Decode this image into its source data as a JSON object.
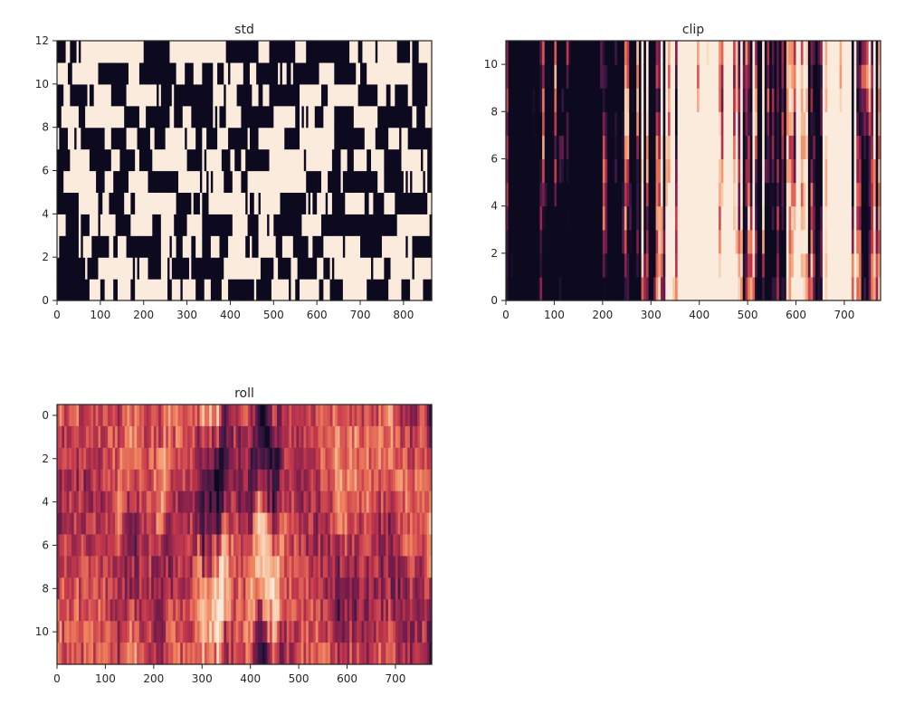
{
  "chart_data": [
    {
      "type": "heatmap",
      "title": "std",
      "xlabel": "",
      "ylabel": "",
      "xlim": [
        0,
        865
      ],
      "ylim": [
        0,
        12
      ],
      "y_orientation": "up",
      "xticks": [
        0,
        100,
        200,
        300,
        400,
        500,
        600,
        700,
        800
      ],
      "yticks": [
        0,
        2,
        4,
        6,
        8,
        10,
        12
      ],
      "n_cols": 865,
      "n_rows": 12,
      "value_range": [
        0,
        1
      ],
      "pattern": "binary",
      "seed": 11,
      "colormap": [
        "#0d0a1f",
        "#3b1845",
        "#7a1d4b",
        "#c73a4d",
        "#f0845d",
        "#f7c6a3",
        "#faebdd"
      ]
    },
    {
      "type": "heatmap",
      "title": "clip",
      "xlabel": "",
      "ylabel": "",
      "xlim": [
        0,
        775
      ],
      "ylim": [
        0,
        11
      ],
      "y_orientation": "up",
      "xticks": [
        0,
        100,
        200,
        300,
        400,
        500,
        600,
        700
      ],
      "yticks": [
        0,
        2,
        4,
        6,
        8,
        10
      ],
      "n_cols": 775,
      "n_rows": 11,
      "value_range": [
        0,
        1
      ],
      "pattern": "clipped",
      "seed": 23,
      "colormap": [
        "#0d0a1f",
        "#3b1845",
        "#7a1d4b",
        "#c73a4d",
        "#f0845d",
        "#f7c6a3",
        "#faebdd"
      ]
    },
    {
      "type": "heatmap",
      "title": "roll",
      "xlabel": "",
      "ylabel": "",
      "xlim": [
        0,
        775
      ],
      "ylim": [
        11.5,
        -0.5
      ],
      "y_orientation": "down",
      "xticks": [
        0,
        100,
        200,
        300,
        400,
        500,
        600,
        700
      ],
      "yticks": [
        0,
        2,
        4,
        6,
        8,
        10
      ],
      "n_cols": 775,
      "n_rows": 12,
      "value_range": [
        0,
        1
      ],
      "pattern": "smooth",
      "seed": 37,
      "colormap": [
        "#0d0a1f",
        "#3b1845",
        "#7a1d4b",
        "#c73a4d",
        "#f0845d",
        "#f7c6a3",
        "#faebdd"
      ]
    }
  ]
}
